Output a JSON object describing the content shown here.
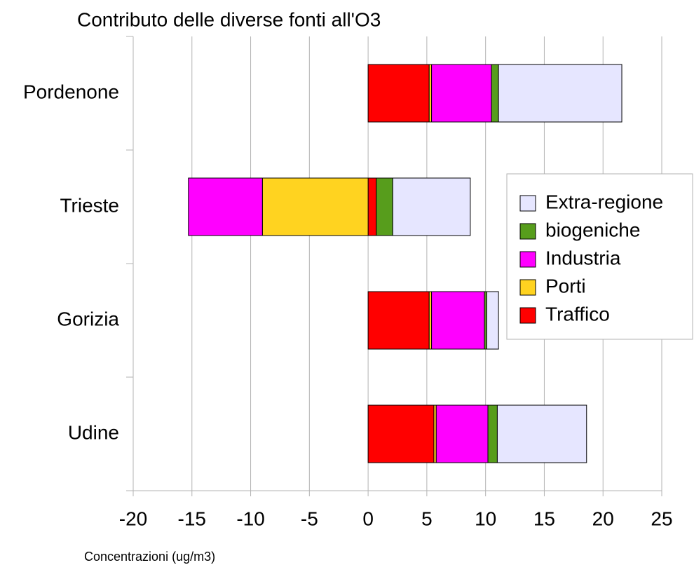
{
  "chart_data": {
    "type": "stacked_barh",
    "title": "Contributo delle diverse fonti all'O3",
    "xlabel": "Concentrazioni (ug/m3)",
    "categories": [
      "Pordenone",
      "Trieste",
      "Gorizia",
      "Udine"
    ],
    "series": [
      {
        "name": "Traffico",
        "color": "#ff0000",
        "values": [
          5.2,
          0.7,
          5.2,
          5.6
        ]
      },
      {
        "name": "Porti",
        "color": "#ffd320",
        "values": [
          0.2,
          -9.0,
          0.2,
          0.2
        ]
      },
      {
        "name": "Industria",
        "color": "#ff00ff",
        "values": [
          5.1,
          -6.3,
          4.5,
          4.4
        ]
      },
      {
        "name": "biogeniche",
        "color": "#579d1c",
        "values": [
          0.6,
          1.4,
          0.2,
          0.8
        ]
      },
      {
        "name": "Extra-regione",
        "color": "#e6e6ff",
        "values": [
          10.5,
          6.6,
          1.0,
          7.6
        ]
      }
    ],
    "xlim": [
      -20,
      25
    ],
    "xticks": [
      -20,
      -15,
      -10,
      -5,
      0,
      5,
      10,
      15,
      20,
      25
    ],
    "grid": true,
    "legend": "right"
  }
}
